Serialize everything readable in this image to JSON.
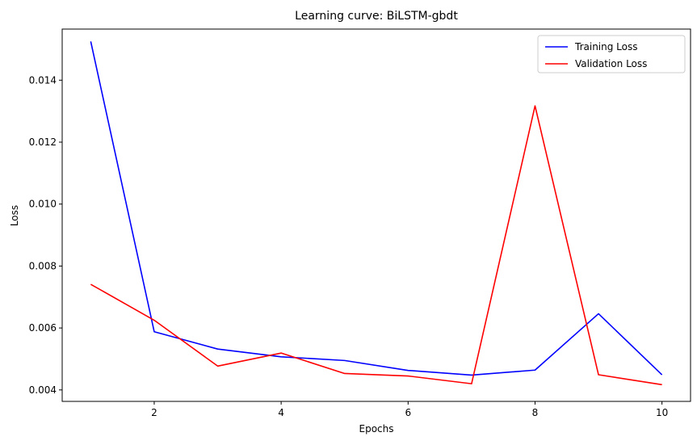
{
  "chart_data": {
    "type": "line",
    "title": "Learning curve: BiLSTM-gbdt",
    "xlabel": "Epochs",
    "ylabel": "Loss",
    "x": [
      1,
      2,
      3,
      4,
      5,
      6,
      7,
      8,
      9,
      10
    ],
    "xlim": [
      0.55,
      10.45
    ],
    "ylim": [
      0.00363,
      0.01565
    ],
    "xticks": [
      2,
      4,
      6,
      8,
      10
    ],
    "xtick_labels": [
      "2",
      "4",
      "6",
      "8",
      "10"
    ],
    "yticks": [
      0.004,
      0.006,
      0.008,
      0.01,
      0.012,
      0.014
    ],
    "ytick_labels": [
      "0.004",
      "0.006",
      "0.008",
      "0.010",
      "0.012",
      "0.014"
    ],
    "grid": false,
    "legend_position": "top-right",
    "series": [
      {
        "name": "Training Loss",
        "color": "#0000ff",
        "values": [
          0.01525,
          0.00588,
          0.00532,
          0.00507,
          0.00495,
          0.00463,
          0.00448,
          0.00464,
          0.00646,
          0.00449
        ]
      },
      {
        "name": "Validation Loss",
        "color": "#ff0000",
        "values": [
          0.00741,
          0.00625,
          0.00477,
          0.00519,
          0.00453,
          0.00445,
          0.0042,
          0.01317,
          0.00449,
          0.00417
        ]
      }
    ]
  }
}
